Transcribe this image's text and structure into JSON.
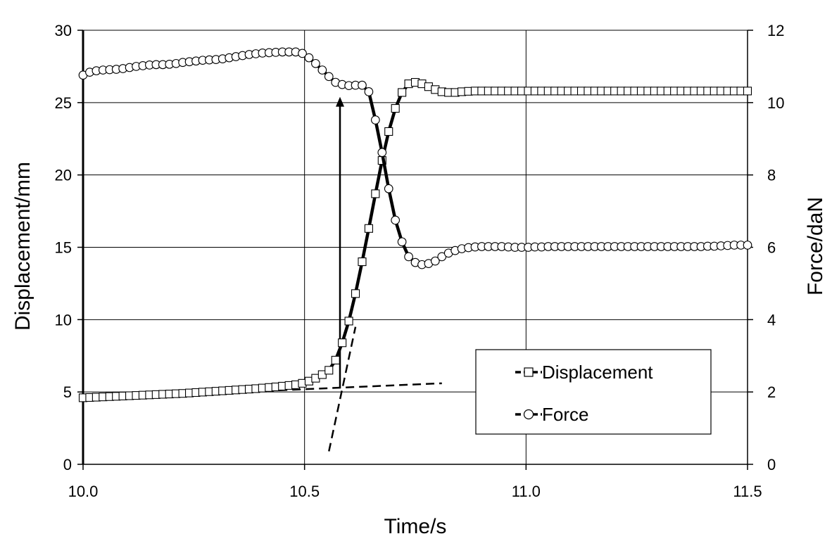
{
  "chart_data": {
    "type": "line",
    "xlabel": "Time/s",
    "ylabel": "Displacement/mm",
    "y2label": "Force/daN",
    "xlim": [
      10.0,
      11.5
    ],
    "ylim": [
      0,
      30
    ],
    "y2lim": [
      0,
      12
    ],
    "x_ticks": [
      "10.0",
      "10.5",
      "11.0",
      "11.5"
    ],
    "y_ticks": [
      "0",
      "5",
      "10",
      "15",
      "20",
      "25",
      "30"
    ],
    "y2_ticks": [
      "0",
      "2",
      "4",
      "6",
      "8",
      "10",
      "12"
    ],
    "grid": true,
    "legend_position": "bottom-right",
    "series": [
      {
        "name": "Displacement",
        "axis": "left",
        "marker": "square",
        "x": [
          10.0,
          10.015,
          10.03,
          10.045,
          10.06,
          10.075,
          10.09,
          10.105,
          10.12,
          10.135,
          10.15,
          10.165,
          10.18,
          10.195,
          10.21,
          10.225,
          10.24,
          10.255,
          10.27,
          10.285,
          10.3,
          10.315,
          10.33,
          10.345,
          10.36,
          10.375,
          10.39,
          10.405,
          10.42,
          10.435,
          10.45,
          10.465,
          10.48,
          10.495,
          10.51,
          10.525,
          10.54,
          10.555,
          10.57,
          10.585,
          10.6,
          10.615,
          10.63,
          10.645,
          10.66,
          10.675,
          10.69,
          10.705,
          10.72,
          10.735,
          10.75,
          10.765,
          10.78,
          10.795,
          10.81,
          10.825,
          10.84,
          10.855,
          10.87,
          10.885,
          10.9,
          10.915,
          10.93,
          10.945,
          10.96,
          10.975,
          10.99,
          11.005,
          11.02,
          11.035,
          11.05,
          11.065,
          11.08,
          11.095,
          11.11,
          11.125,
          11.14,
          11.155,
          11.17,
          11.185,
          11.2,
          11.215,
          11.23,
          11.245,
          11.26,
          11.275,
          11.29,
          11.305,
          11.32,
          11.335,
          11.35,
          11.365,
          11.38,
          11.395,
          11.41,
          11.425,
          11.44,
          11.455,
          11.47,
          11.485,
          11.5
        ],
        "values": [
          4.6,
          4.62,
          4.64,
          4.66,
          4.68,
          4.7,
          4.72,
          4.74,
          4.76,
          4.78,
          4.8,
          4.82,
          4.84,
          4.86,
          4.88,
          4.9,
          4.93,
          4.96,
          4.99,
          5.02,
          5.05,
          5.08,
          5.11,
          5.14,
          5.17,
          5.2,
          5.23,
          5.27,
          5.31,
          5.35,
          5.4,
          5.45,
          5.5,
          5.6,
          5.75,
          5.95,
          6.2,
          6.5,
          7.2,
          8.4,
          9.9,
          11.8,
          14.0,
          16.3,
          18.7,
          21.0,
          23.0,
          24.6,
          25.7,
          26.3,
          26.4,
          26.3,
          26.1,
          25.9,
          25.75,
          25.7,
          25.7,
          25.75,
          25.78,
          25.8,
          25.8,
          25.8,
          25.8,
          25.8,
          25.8,
          25.8,
          25.8,
          25.8,
          25.8,
          25.8,
          25.8,
          25.8,
          25.8,
          25.8,
          25.8,
          25.8,
          25.8,
          25.8,
          25.8,
          25.8,
          25.8,
          25.8,
          25.8,
          25.8,
          25.8,
          25.8,
          25.8,
          25.8,
          25.8,
          25.8,
          25.8,
          25.8,
          25.8,
          25.8,
          25.8,
          25.8,
          25.8,
          25.8,
          25.8,
          25.8,
          25.8
        ]
      },
      {
        "name": "Force",
        "axis": "right",
        "marker": "circle",
        "x": [
          10.0,
          10.015,
          10.03,
          10.045,
          10.06,
          10.075,
          10.09,
          10.105,
          10.12,
          10.135,
          10.15,
          10.165,
          10.18,
          10.195,
          10.21,
          10.225,
          10.24,
          10.255,
          10.27,
          10.285,
          10.3,
          10.315,
          10.33,
          10.345,
          10.36,
          10.375,
          10.39,
          10.405,
          10.42,
          10.435,
          10.45,
          10.465,
          10.48,
          10.495,
          10.51,
          10.525,
          10.54,
          10.555,
          10.57,
          10.585,
          10.6,
          10.615,
          10.63,
          10.645,
          10.66,
          10.675,
          10.69,
          10.705,
          10.72,
          10.735,
          10.75,
          10.765,
          10.78,
          10.795,
          10.81,
          10.825,
          10.84,
          10.855,
          10.87,
          10.885,
          10.9,
          10.915,
          10.93,
          10.945,
          10.96,
          10.975,
          10.99,
          11.005,
          11.02,
          11.035,
          11.05,
          11.065,
          11.08,
          11.095,
          11.11,
          11.125,
          11.14,
          11.155,
          11.17,
          11.185,
          11.2,
          11.215,
          11.23,
          11.245,
          11.26,
          11.275,
          11.29,
          11.305,
          11.32,
          11.335,
          11.35,
          11.365,
          11.38,
          11.395,
          11.41,
          11.425,
          11.44,
          11.455,
          11.47,
          11.485,
          11.5
        ],
        "values": [
          10.76,
          10.84,
          10.88,
          10.9,
          10.91,
          10.92,
          10.94,
          10.97,
          11.0,
          11.02,
          11.04,
          11.05,
          11.05,
          11.06,
          11.08,
          11.11,
          11.13,
          11.15,
          11.17,
          11.18,
          11.19,
          11.21,
          11.24,
          11.27,
          11.3,
          11.33,
          11.35,
          11.37,
          11.38,
          11.39,
          11.4,
          11.4,
          11.4,
          11.36,
          11.24,
          11.08,
          10.9,
          10.72,
          10.56,
          10.5,
          10.47,
          10.48,
          10.48,
          10.3,
          9.52,
          8.62,
          7.62,
          6.75,
          6.15,
          5.74,
          5.58,
          5.52,
          5.55,
          5.62,
          5.74,
          5.84,
          5.91,
          5.96,
          5.99,
          6.01,
          6.02,
          6.02,
          6.02,
          6.02,
          6.01,
          6.0,
          6.0,
          6.0,
          6.01,
          6.01,
          6.02,
          6.02,
          6.02,
          6.02,
          6.02,
          6.02,
          6.02,
          6.02,
          6.02,
          6.02,
          6.02,
          6.02,
          6.02,
          6.02,
          6.02,
          6.02,
          6.02,
          6.02,
          6.02,
          6.02,
          6.02,
          6.02,
          6.02,
          6.02,
          6.03,
          6.03,
          6.04,
          6.05,
          6.06,
          6.06,
          6.06
        ]
      }
    ],
    "annotations": {
      "dashed_lines": [
        {
          "axis": "left",
          "x": [
            10.05,
            10.81
          ],
          "y": [
            4.6,
            5.6
          ]
        },
        {
          "axis": "left",
          "x": [
            10.555,
            10.615
          ],
          "y": [
            0.9,
            9.5
          ]
        }
      ],
      "arrow": {
        "axis": "left",
        "x": 10.58,
        "y_from": 5.25,
        "y_to": 25.4
      }
    }
  }
}
